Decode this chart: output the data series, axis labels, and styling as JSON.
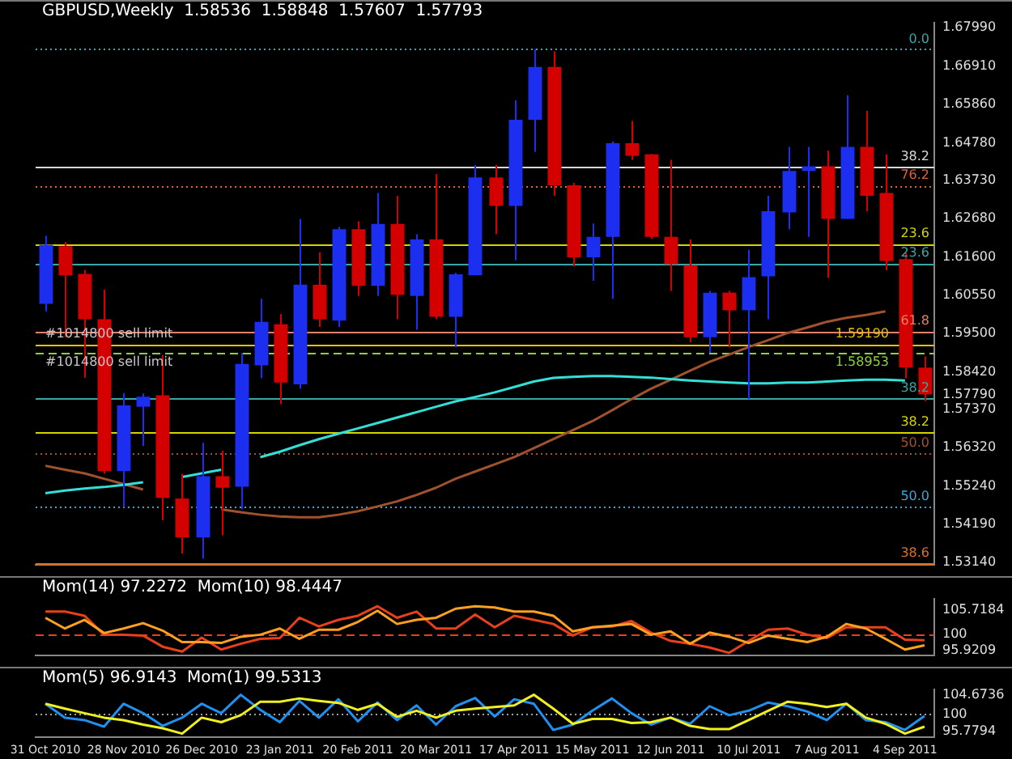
{
  "chart_data": [
    {
      "type": "candlestick",
      "title": "GBPUSD,Weekly  1.58536  1.58848  1.57607  1.57793",
      "categories": [
        "31 Oct 2010",
        null,
        null,
        null,
        "28 Nov 2010",
        null,
        null,
        null,
        "26 Dec 2010",
        null,
        null,
        null,
        "23 Jan 2011",
        null,
        null,
        null,
        "20 Feb 2011",
        null,
        null,
        null,
        "20 Mar 2011",
        null,
        null,
        null,
        "17 Apr 2011",
        null,
        null,
        null,
        "15 May 2011",
        null,
        null,
        null,
        "12 Jun 2011",
        null,
        null,
        null,
        "10 Jul 2011",
        null,
        null,
        null,
        "7 Aug 2011",
        null,
        null,
        null,
        "4 Sep 2011",
        null
      ],
      "ohlc": [
        [
          1.6031,
          1.622,
          1.601,
          1.6195
        ],
        [
          1.6191,
          1.6203,
          1.5938,
          1.611
        ],
        [
          1.6114,
          1.6125,
          1.5825,
          1.5988
        ],
        [
          1.5988,
          1.607,
          1.5559,
          1.5566
        ],
        [
          1.5566,
          1.5783,
          1.5466,
          1.5749
        ],
        [
          1.5745,
          1.5782,
          1.5636,
          1.5773
        ],
        [
          1.5777,
          1.5888,
          1.543,
          1.5492
        ],
        [
          1.549,
          1.5559,
          1.5337,
          1.5382
        ],
        [
          1.5382,
          1.5645,
          1.5323,
          1.5552
        ],
        [
          1.5552,
          1.5623,
          1.5388,
          1.552
        ],
        [
          1.5523,
          1.5895,
          1.546,
          1.5864
        ],
        [
          1.586,
          1.6045,
          1.5824,
          1.5981
        ],
        [
          1.5974,
          1.6002,
          1.5752,
          1.5812
        ],
        [
          1.5807,
          1.6267,
          1.5795,
          1.6084
        ],
        [
          1.6084,
          1.6174,
          1.5967,
          1.5988
        ],
        [
          1.5984,
          1.6245,
          1.5967,
          1.6238
        ],
        [
          1.6238,
          1.626,
          1.6053,
          1.6081
        ],
        [
          1.6081,
          1.6339,
          1.6053,
          1.6253
        ],
        [
          1.6253,
          1.6331,
          1.5988,
          1.6056
        ],
        [
          1.6053,
          1.6224,
          1.5959,
          1.621
        ],
        [
          1.621,
          1.6391,
          1.5988,
          1.5995
        ],
        [
          1.5995,
          1.6117,
          1.591,
          1.6113
        ],
        [
          1.611,
          1.6417,
          1.611,
          1.6382
        ],
        [
          1.6382,
          1.6417,
          1.6224,
          1.6303
        ],
        [
          1.6303,
          1.6596,
          1.6152,
          1.6542
        ],
        [
          1.6542,
          1.6739,
          1.6453,
          1.6689
        ],
        [
          1.6689,
          1.6732,
          1.6331,
          1.636
        ],
        [
          1.636,
          1.6367,
          1.6135,
          1.616
        ],
        [
          1.616,
          1.6254,
          1.6095,
          1.6217
        ],
        [
          1.6217,
          1.6482,
          1.6045,
          1.6477
        ],
        [
          1.6477,
          1.6539,
          1.6431,
          1.6442
        ],
        [
          1.6446,
          1.6447,
          1.6211,
          1.6217
        ],
        [
          1.6217,
          1.6431,
          1.6067,
          1.6141
        ],
        [
          1.6138,
          1.621,
          1.5924,
          1.5938
        ],
        [
          1.5938,
          1.6067,
          1.5895,
          1.6062
        ],
        [
          1.6062,
          1.6067,
          1.591,
          1.6013
        ],
        [
          1.6013,
          1.6181,
          1.5766,
          1.6105
        ],
        [
          1.6107,
          1.6331,
          1.5988,
          1.6288
        ],
        [
          1.6285,
          1.6467,
          1.6238,
          1.64
        ],
        [
          1.64,
          1.6467,
          1.6217,
          1.6413
        ],
        [
          1.6413,
          1.6456,
          1.6103,
          1.6267
        ],
        [
          1.6267,
          1.661,
          1.6267,
          1.6467
        ],
        [
          1.6467,
          1.6567,
          1.6288,
          1.6331
        ],
        [
          1.6339,
          1.6446,
          1.6124,
          1.615
        ],
        [
          1.6155,
          1.6174,
          1.5824,
          1.5854
        ],
        [
          1.58536,
          1.58848,
          1.57607,
          1.57793
        ]
      ],
      "colors": [
        "#1c2ef0",
        "#d40000",
        "#d40000",
        "#d40000",
        "#1c2ef0",
        "#1c2ef0",
        "#d40000",
        "#d40000",
        "#1c2ef0",
        "#d40000",
        "#1c2ef0",
        "#1c2ef0",
        "#d40000",
        "#1c2ef0",
        "#d40000",
        "#1c2ef0",
        "#d40000",
        "#1c2ef0",
        "#d40000",
        "#1c2ef0",
        "#d40000",
        "#1c2ef0",
        "#1c2ef0",
        "#d40000",
        "#1c2ef0",
        "#1c2ef0",
        "#d40000",
        "#d40000",
        "#1c2ef0",
        "#1c2ef0",
        "#d40000",
        "#d40000",
        "#d40000",
        "#d40000",
        "#1c2ef0",
        "#d40000",
        "#1c2ef0",
        "#1c2ef0",
        "#1c2ef0",
        "#1c2ef0",
        "#d40000",
        "#1c2ef0",
        "#d40000",
        "#d40000",
        "#d40000",
        "#d40000"
      ],
      "series": [
        {
          "type": "line",
          "color": "#33e0d8",
          "values": [
            1.5505,
            1.5512,
            1.5518,
            1.5522,
            1.5528,
            1.5535,
            null,
            1.555,
            1.556,
            1.557,
            null,
            1.5605,
            1.562,
            1.5638,
            1.5655,
            1.567,
            1.5685,
            1.57,
            1.5715,
            1.573,
            1.5745,
            1.576,
            1.5772,
            1.5785,
            1.58,
            1.5815,
            1.5825,
            1.5828,
            1.583,
            1.583,
            1.5828,
            1.5826,
            1.5822,
            1.5818,
            1.5815,
            1.5812,
            1.581,
            1.581,
            1.5812,
            1.5812,
            1.5815,
            1.5818,
            1.582,
            1.582,
            1.5818,
            null
          ]
        },
        {
          "type": "line",
          "color": "#a0522d",
          "values": [
            1.5581,
            1.557,
            1.556,
            1.5545,
            1.553,
            1.5515,
            null,
            null,
            null,
            1.546,
            1.5452,
            1.5445,
            1.544,
            1.5438,
            1.5438,
            1.5445,
            1.5455,
            1.5468,
            1.5482,
            1.55,
            1.552,
            1.5545,
            1.5565,
            1.5585,
            1.5605,
            1.563,
            1.5655,
            1.568,
            1.5705,
            1.5735,
            1.5766,
            1.5795,
            1.582,
            1.5845,
            1.587,
            1.589,
            1.5911,
            1.593,
            1.595,
            1.5965,
            1.5981,
            1.5992,
            1.6,
            1.601,
            null,
            null
          ]
        }
      ],
      "ylim": [
        1.5305,
        1.6812
      ],
      "yticks": [
        {
          "value": 1.6799,
          "label": "1.67990"
        },
        {
          "value": 1.6691,
          "label": "1.66910"
        },
        {
          "value": 1.6586,
          "label": "1.65860"
        },
        {
          "value": 1.6478,
          "label": "1.64780"
        },
        {
          "value": 1.6373,
          "label": "1.63730"
        },
        {
          "value": 1.6268,
          "label": "1.62680"
        },
        {
          "value": 1.616,
          "label": "1.61600"
        },
        {
          "value": 1.6055,
          "label": "1.60550"
        },
        {
          "value": 1.595,
          "label": "1.59500"
        },
        {
          "value": 1.5842,
          "label": "1.58420"
        },
        {
          "value": 1.5779,
          "label": "1.57790"
        },
        {
          "value": 1.5737,
          "label": "1.57370"
        },
        {
          "value": 1.5632,
          "label": "1.56320"
        },
        {
          "value": 1.5524,
          "label": "1.55240"
        },
        {
          "value": 1.5419,
          "label": "1.54190"
        },
        {
          "value": 1.5314,
          "label": "1.53140"
        }
      ],
      "ref_lines": [
        {
          "axis": "y",
          "value": 1.6739,
          "color": "#3aa6a6",
          "line_style": "dotted"
        },
        {
          "axis": "y",
          "value": 1.6413,
          "color": "#d8d8d8",
          "line_style": "solid"
        },
        {
          "axis": "y",
          "value": 1.636,
          "color": "#e0603a",
          "line_style": "dotted"
        },
        {
          "axis": "y",
          "value": 1.6198,
          "color": "#d4d400",
          "line_style": "solid"
        },
        {
          "axis": "y",
          "value": 1.6144,
          "color": "#3aa6a6",
          "line_style": "solid"
        },
        {
          "axis": "y",
          "value": 1.5955,
          "color": "#e08070",
          "line_style": "solid"
        },
        {
          "axis": "y",
          "value": 1.5919,
          "label": "1.59190",
          "color": "#e6c200",
          "line_style": "solid"
        },
        {
          "axis": "y",
          "value": 1.58953,
          "label": "1.58953",
          "color": "#8fcf3f",
          "line_style": "dashed"
        },
        {
          "axis": "y",
          "value": 1.5769,
          "color": "#3aa6a6",
          "line_style": "solid"
        },
        {
          "axis": "y",
          "value": 1.5674,
          "color": "#d4d400",
          "line_style": "solid"
        },
        {
          "axis": "y",
          "value": 1.5616,
          "color": "#a0522d",
          "line_style": "dotted"
        },
        {
          "axis": "y",
          "value": 1.5469,
          "color": "#3aa6d8",
          "line_style": "dotted"
        },
        {
          "axis": "y",
          "value": 1.5311,
          "color": "#e07020",
          "line_style": "solid"
        }
      ],
      "annotations": [
        {
          "text": "#1014800 sell limit",
          "x": "31 Oct 2010",
          "y": 1.5919
        },
        {
          "text": "#1014800 sell limit",
          "x": "31 Oct 2010",
          "y": 1.58953
        },
        {
          "text": "0.0",
          "y": 1.6739
        },
        {
          "text": "38.2",
          "y": 1.6413
        },
        {
          "text": "76.2",
          "y": 1.636
        },
        {
          "text": "23.6",
          "y": 1.6198
        },
        {
          "text": "23.6",
          "y": 1.6144
        },
        {
          "text": "61.8",
          "y": 1.5955
        },
        {
          "text": "38.2",
          "y": 1.5769
        },
        {
          "text": "38.2",
          "y": 1.5674
        },
        {
          "text": "50.0",
          "y": 1.5616
        },
        {
          "text": "50.0",
          "y": 1.5469
        },
        {
          "text": "38.6",
          "y": 1.5311
        }
      ],
      "tick_labels": "y"
    },
    {
      "type": "line",
      "title": "Mom(14) 97.2272  Mom(10) 98.4447",
      "categories": [
        "31 Oct 2010",
        null,
        null,
        null,
        "28 Nov 2010",
        null,
        null,
        null,
        "26 Dec 2010",
        null,
        null,
        null,
        "23 Jan 2011",
        null,
        null,
        null,
        "20 Feb 2011",
        null,
        null,
        null,
        "20 Mar 2011",
        null,
        null,
        null,
        "17 Apr 2011",
        null,
        null,
        null,
        "15 May 2011",
        null,
        null,
        null,
        "12 Jun 2011",
        null,
        null,
        null,
        "10 Jul 2011",
        null,
        null,
        null,
        "7 Aug 2011",
        null,
        null,
        null,
        "4 Sep 2011",
        null
      ],
      "series": [
        {
          "color": "#ffa020",
          "values": [
            103.9,
            101.3,
            103.4,
            100.2,
            101.3,
            102.6,
            100.8,
            98.0,
            98.0,
            97.8,
            99.3,
            99.8,
            101.3,
            98.8,
            101.0,
            101.0,
            102.9,
            105.6,
            102.4,
            103.4,
            103.9,
            106.1,
            106.7,
            106.4,
            105.4,
            105.4,
            104.4,
            100.6,
            101.6,
            102.0,
            102.4,
            99.8,
            100.6,
            97.6,
            100.3,
            99.3,
            97.8,
            99.6,
            98.8,
            98.0,
            99.3,
            102.4,
            101.3,
            98.8,
            96.2,
            97.2272
          ]
        },
        {
          "color": "#e8401a",
          "values": [
            105.4,
            105.4,
            104.4,
            99.8,
            99.8,
            99.6,
            96.9,
            95.7,
            99.1,
            96.2,
            97.6,
            98.8,
            99.0,
            103.9,
            101.8,
            103.4,
            104.4,
            106.7,
            103.9,
            105.4,
            101.3,
            101.3,
            104.7,
            101.6,
            104.4,
            103.4,
            102.4,
            99.6,
            101.6,
            101.8,
            103.1,
            100.3,
            98.3,
            97.6,
            96.7,
            95.4,
            98.3,
            101.0,
            101.3,
            99.8,
            99.0,
            101.6,
            101.6,
            101.6,
            98.6,
            98.4447
          ]
        }
      ],
      "ylim": [
        94.7,
        108.5
      ],
      "yticks": [
        {
          "value": 105.7184,
          "label": "105.7184"
        },
        100,
        {
          "value": 95.9209,
          "label": "95.9209"
        }
      ],
      "ref_lines": [
        {
          "axis": "y",
          "value": 100,
          "color": "#e8401a",
          "line_style": "dashed"
        }
      ],
      "tick_labels": "y"
    },
    {
      "type": "line",
      "title": "Mom(5) 96.9143  Mom(1) 99.5313",
      "categories": [
        "31 Oct 2010",
        null,
        null,
        null,
        "28 Nov 2010",
        null,
        null,
        null,
        "26 Dec 2010",
        null,
        null,
        null,
        "23 Jan 2011",
        null,
        null,
        null,
        "20 Feb 2011",
        null,
        null,
        null,
        "20 Mar 2011",
        null,
        null,
        null,
        "17 Apr 2011",
        null,
        null,
        null,
        "15 May 2011",
        null,
        null,
        null,
        "12 Jun 2011",
        null,
        null,
        null,
        "10 Jul 2011",
        null,
        null,
        null,
        "7 Aug 2011",
        null,
        null,
        null,
        "4 Sep 2011",
        null
      ],
      "series": [
        {
          "color": "#f0f020",
          "values": [
            102.5,
            101.3,
            100.2,
            99.1,
            98.5,
            97.4,
            96.5,
            95.2,
            99.1,
            98.0,
            99.7,
            103.0,
            103.0,
            103.8,
            103.2,
            102.7,
            101.0,
            102.5,
            99.3,
            100.8,
            99.1,
            100.8,
            101.3,
            101.7,
            102.1,
            104.7,
            101.3,
            97.6,
            98.8,
            98.8,
            97.8,
            98.0,
            99.1,
            97.1,
            96.3,
            96.3,
            98.5,
            100.8,
            103.0,
            102.5,
            101.7,
            102.5,
            99.1,
            97.6,
            95.2,
            96.9143
          ]
        },
        {
          "color": "#2090f0",
          "values": [
            102.5,
            99.1,
            98.5,
            96.9,
            102.5,
            100.2,
            97.1,
            99.1,
            102.5,
            100.2,
            104.7,
            101.0,
            98.0,
            103.2,
            99.1,
            103.6,
            98.2,
            102.8,
            98.5,
            102.1,
            97.4,
            101.9,
            103.9,
            99.4,
            103.6,
            102.5,
            96.1,
            97.4,
            100.8,
            103.8,
            100.2,
            97.4,
            99.1,
            97.6,
            101.9,
            99.7,
            100.8,
            102.8,
            101.9,
            100.6,
            98.5,
            102.5,
            98.5,
            98.0,
            96.1,
            99.5313
          ]
        }
      ],
      "ylim": [
        94.3,
        106.0
      ],
      "yticks": [
        {
          "value": 104.6736,
          "label": "104.6736"
        },
        100,
        {
          "value": 95.7794,
          "label": "95.7794"
        }
      ],
      "ref_lines": [
        {
          "axis": "y",
          "value": 100,
          "color": "#a0a0a0",
          "line_style": "dotted"
        }
      ]
    }
  ]
}
